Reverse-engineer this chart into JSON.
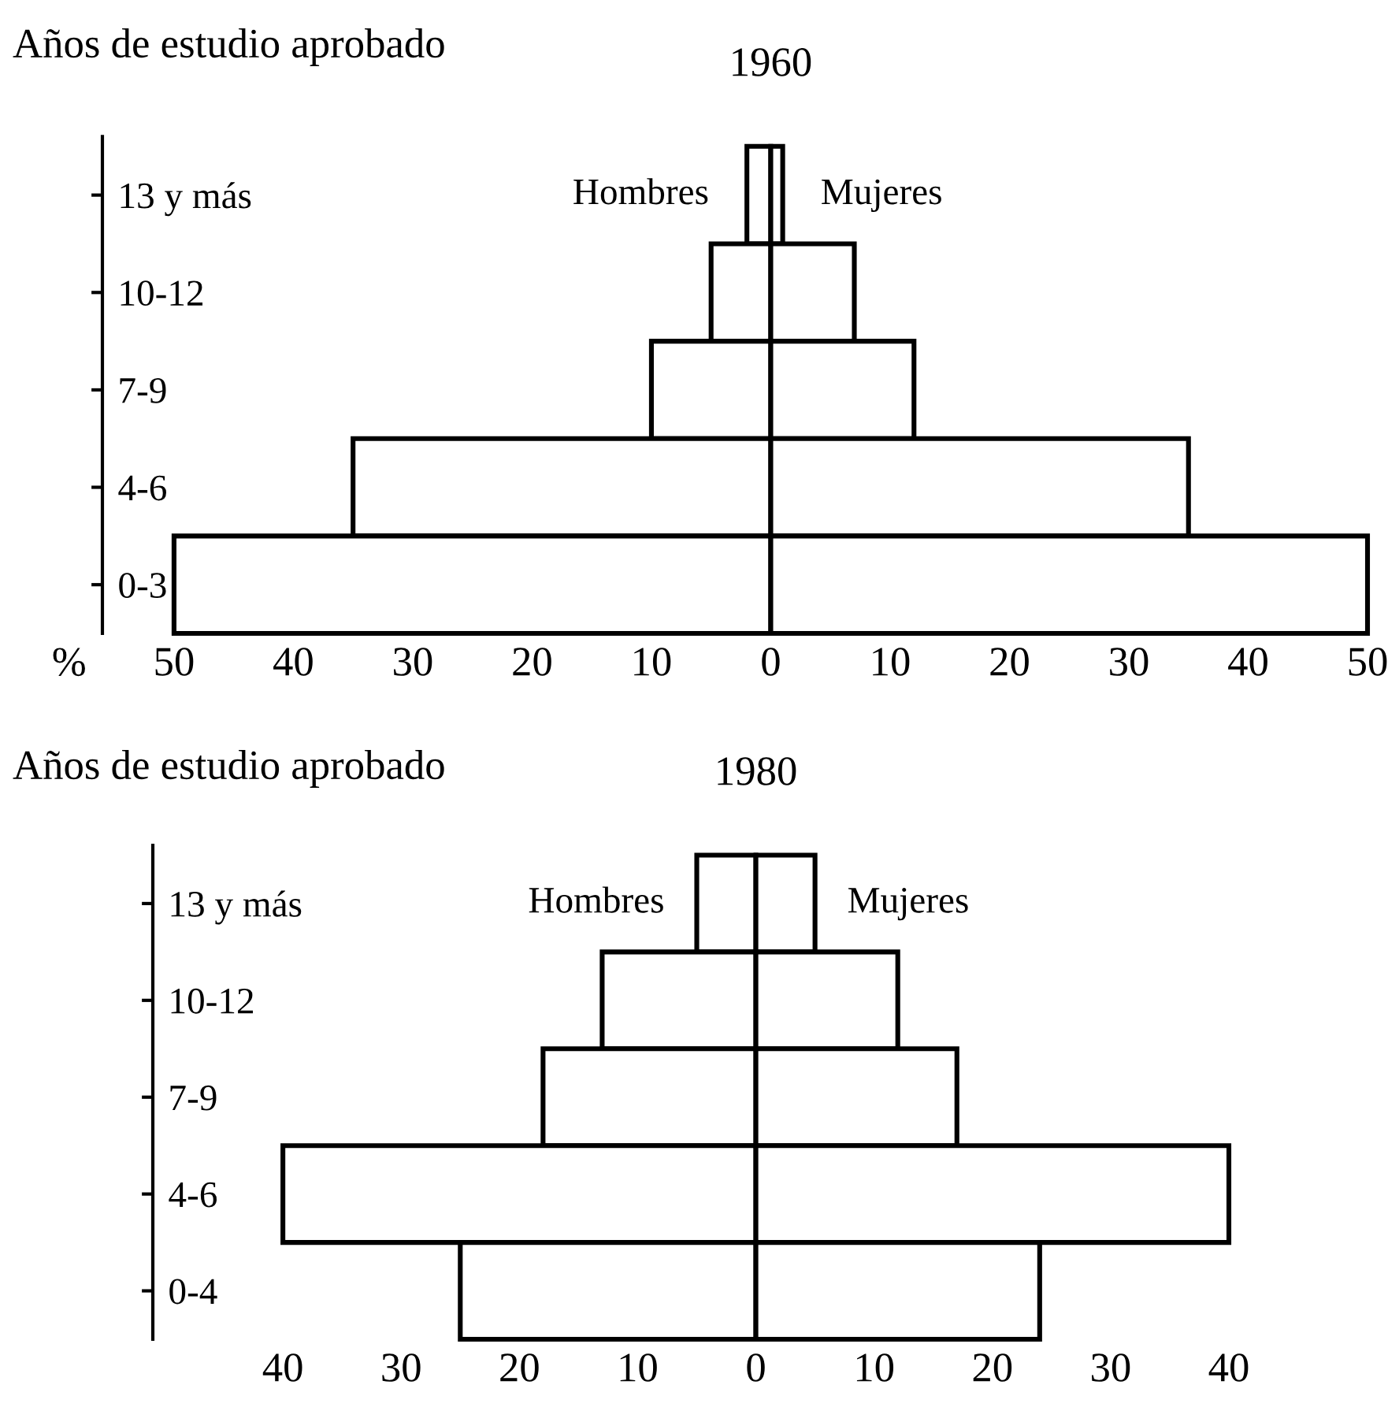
{
  "chart_data": [
    {
      "type": "bar",
      "orientation": "horizontal",
      "stacked": true,
      "title": "1960",
      "ylabel": "Años de estudio aprobado",
      "xlabel": "%",
      "categories": [
        "13 y más",
        "10-12",
        "7-9",
        "4-6",
        "0-3"
      ],
      "series": [
        {
          "name": "Hombres",
          "color": "#000000",
          "values": [
            -2,
            -5,
            -10,
            -35,
            -50
          ]
        },
        {
          "name": "Mujeres",
          "color": "#000000",
          "values": [
            1,
            7,
            12,
            35,
            50
          ]
        }
      ],
      "xlim": [
        -56,
        50
      ],
      "xticks": [
        {
          "value": -50,
          "label": "50"
        },
        {
          "value": -40,
          "label": "40"
        },
        {
          "value": -30,
          "label": "30"
        },
        {
          "value": -20,
          "label": "20"
        },
        {
          "value": -10,
          "label": "10"
        },
        0,
        10,
        20,
        30,
        40,
        50
      ],
      "grid": false,
      "legend": false
    },
    {
      "type": "bar",
      "orientation": "horizontal",
      "stacked": true,
      "title": "1980",
      "ylabel": "Años de estudio aprobado",
      "categories": [
        "13 y más",
        "10-12",
        "7-9",
        "4-6",
        "0-4"
      ],
      "series": [
        {
          "name": "Hombres",
          "color": "#000000",
          "values": [
            -5,
            -13,
            -18,
            -40,
            -25
          ]
        },
        {
          "name": "Mujeres",
          "color": "#000000",
          "values": [
            5,
            12,
            17,
            40,
            24
          ]
        }
      ],
      "xlim": [
        -51,
        40
      ],
      "xticks": [
        {
          "value": -40,
          "label": "40"
        },
        {
          "value": -30,
          "label": "30"
        },
        {
          "value": -20,
          "label": "20"
        },
        {
          "value": -10,
          "label": "10"
        },
        0,
        10,
        20,
        30,
        40
      ],
      "grid": false,
      "legend": false
    }
  ]
}
